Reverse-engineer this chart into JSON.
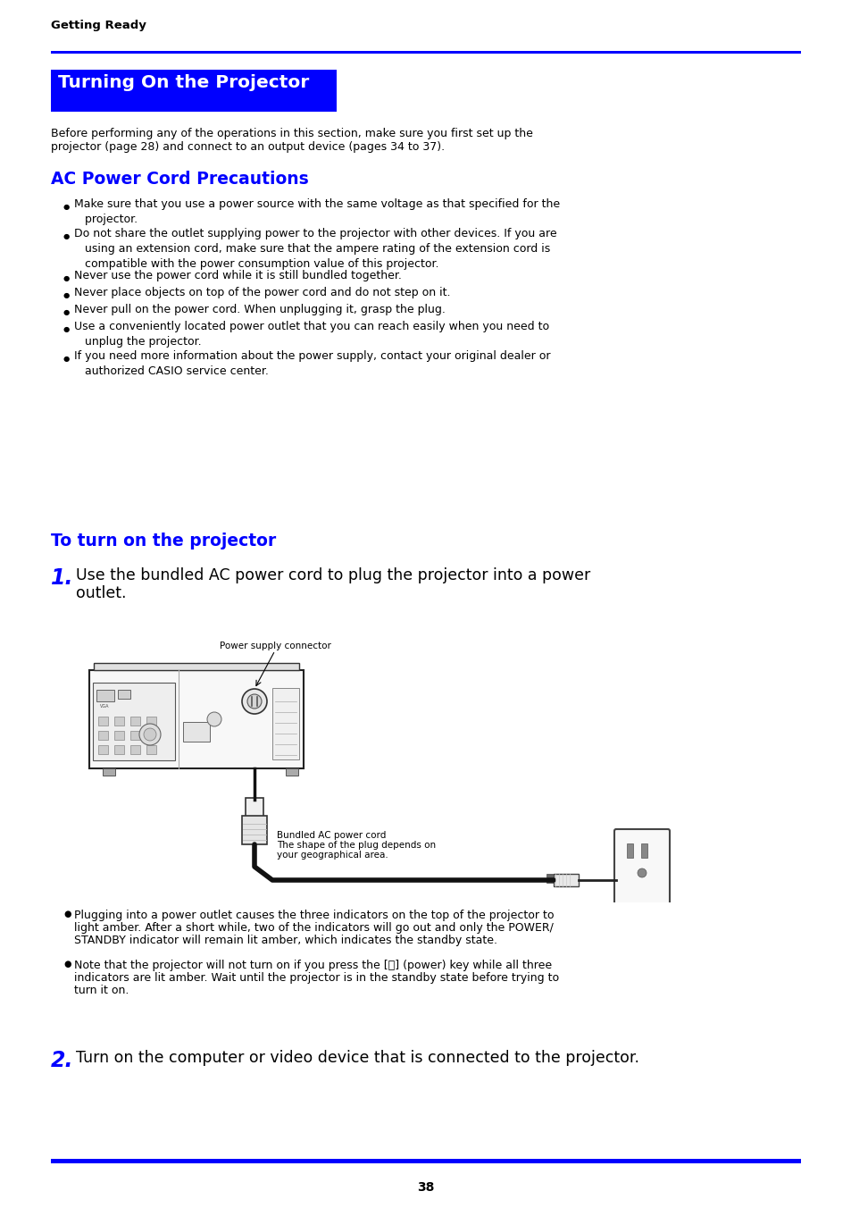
{
  "page_bg": "#ffffff",
  "blue_color": "#0000ff",
  "black_color": "#000000",
  "header_text": "Getting Ready",
  "title_box_text": "Turning On the Projector",
  "title_box_bg": "#0000ff",
  "title_box_text_color": "#ffffff",
  "intro_line1": "Before performing any of the operations in this section, make sure you first set up the",
  "intro_line2": "projector (page 28) and connect to an output device (pages 34 to 37).",
  "section1_title": "AC Power Cord Precautions",
  "section2_title": "To turn on the projector",
  "step1_num": "1.",
  "step1_text_line1": "Use the bundled AC power cord to plug the projector into a power",
  "step1_text_line2": "outlet.",
  "power_supply_label": "Power supply connector",
  "bundled_cord_line1": "Bundled AC power cord",
  "bundled_cord_line2": "The shape of the plug depends on",
  "bundled_cord_line3": "your geographical area.",
  "note1_line1": "● Plugging into a power outlet causes the three indicators on the top of the projector to",
  "note1_line2": "   light amber. After a short while, two of the indicators will go out and only the POWER/",
  "note1_line3": "   STANDBY indicator will remain lit amber, which indicates the standby state.",
  "note2_line1": "● Note that the projector will not turn on if you press the [⏻] (power) key while all three",
  "note2_line2": "   indicators are lit amber. Wait until the projector is in the standby state before trying to",
  "note2_line3": "   turn it on.",
  "step2_num": "2.",
  "step2_text": "Turn on the computer or video device that is connected to the projector.",
  "bullet_texts": [
    "Make sure that you use a power source with the same voltage as that specified for the\n   projector.",
    "Do not share the outlet supplying power to the projector with other devices. If you are\n   using an extension cord, make sure that the ampere rating of the extension cord is\n   compatible with the power consumption value of this projector.",
    "Never use the power cord while it is still bundled together.",
    "Never place objects on top of the power cord and do not step on it.",
    "Never pull on the power cord. When unplugging it, grasp the plug.",
    "Use a conveniently located power outlet that you can reach easily when you need to\n   unplug the projector.",
    "If you need more information about the power supply, contact your original dealer or\n   authorized CASIO service center."
  ],
  "page_number": "38"
}
